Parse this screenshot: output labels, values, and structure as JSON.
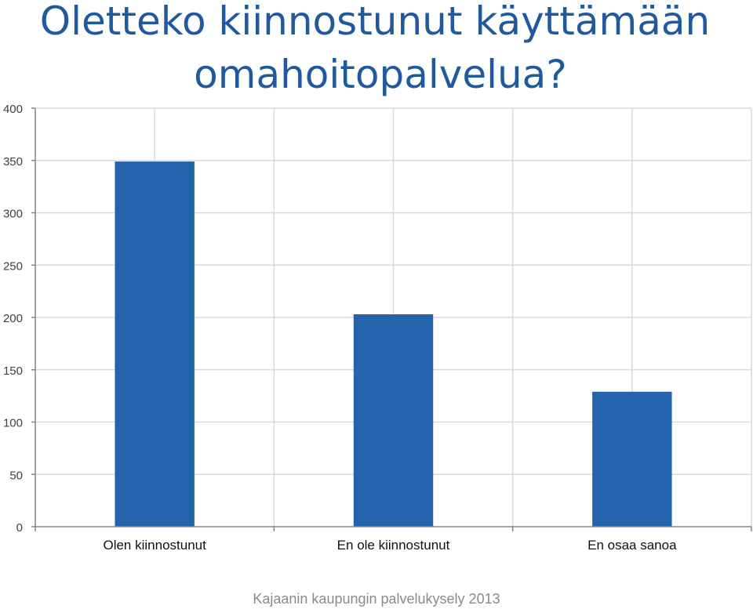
{
  "title": {
    "line1": "Oletteko kiinnostunut käyttämään",
    "line2": "omahoitopalvelua?"
  },
  "footer": "Kajaanin kaupungin palvelukysely 2013",
  "colors": {
    "bar": "#2464AD",
    "title": "#1F5A9E",
    "grid": "#D9D9D9",
    "axis": "#868686",
    "tick_text": "#404040",
    "footer": "#8A8A8A"
  },
  "chart_data": {
    "type": "bar",
    "categories": [
      "Olen kiinnostunut",
      "En ole kiinnostunut",
      "En osaa sanoa"
    ],
    "values": [
      349,
      203,
      129
    ],
    "yticks": [
      "0",
      "50",
      "100",
      "150",
      "200",
      "250",
      "300",
      "350",
      "400"
    ],
    "ylim": [
      0,
      400
    ],
    "grid": true,
    "legend": "none"
  }
}
